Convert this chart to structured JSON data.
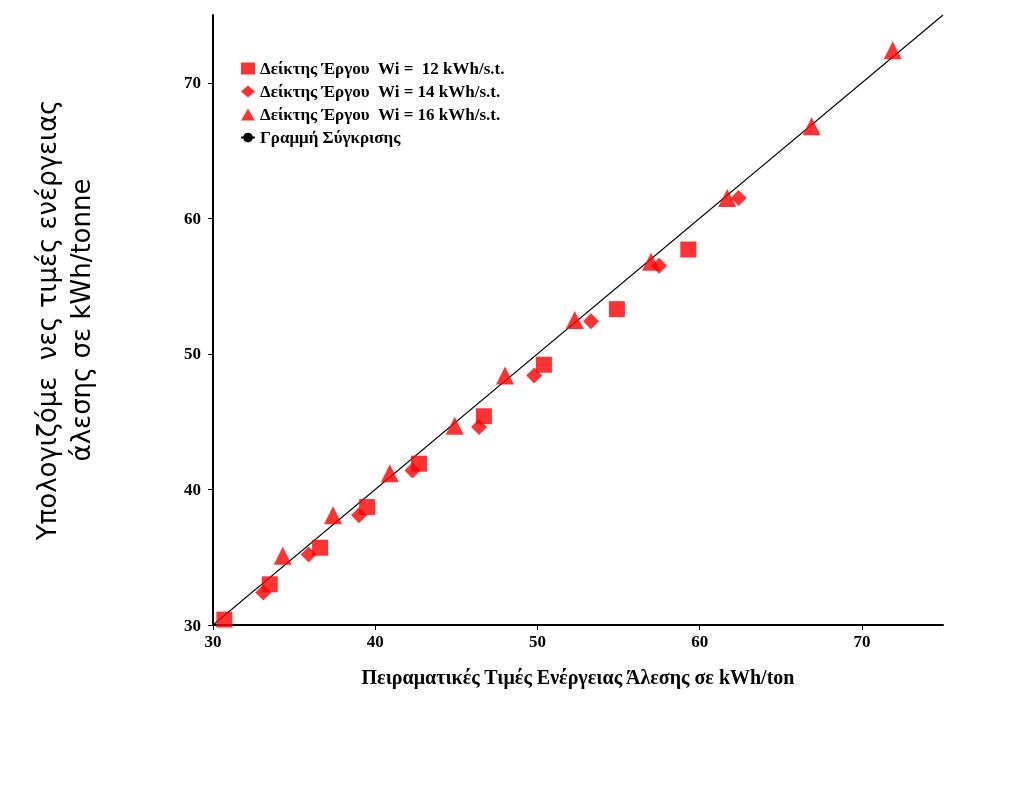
{
  "chart_data": {
    "type": "scatter",
    "xlabel": "Πειραματικές Τιμές Ενέργειας Άλεσης σε kWh/ton",
    "ylabel": "Υπολογιζόμε  νες τιμές ενέργειας\nάλεσης σε kWh/tonne",
    "xlim": [
      30,
      75
    ],
    "xticks": [
      30,
      40,
      50,
      60,
      70
    ],
    "ylim": [
      30,
      75
    ],
    "yticks": [
      30,
      40,
      50,
      60,
      70
    ],
    "grid": false,
    "legend": "top left",
    "series": [
      {
        "name": "Δείκτης Έργου  Wi =  12 kWh/s.t.",
        "color": "#ff0000",
        "marker": "square",
        "x": [
          30.7,
          33.5,
          36.6,
          39.5,
          42.7,
          46.7,
          50.4,
          54.9,
          59.3
        ],
        "values": [
          30.4,
          33.0,
          35.7,
          38.7,
          41.9,
          45.4,
          49.2,
          53.3,
          57.7
        ]
      },
      {
        "name": "Δείκτης Έργου  Wi = 14 kWh/s.t.",
        "color": "#ff0000",
        "marker": "diamond",
        "x": [
          33.1,
          35.9,
          39.0,
          42.3,
          46.4,
          49.8,
          53.3,
          57.5,
          62.4
        ],
        "values": [
          32.4,
          35.2,
          38.1,
          41.4,
          44.6,
          48.4,
          52.4,
          56.5,
          61.5
        ]
      },
      {
        "name": "Δείκτης Έργου  Wi = 16 kWh/s.t.",
        "color": "#ff0000",
        "marker": "triangle",
        "x": [
          34.3,
          37.4,
          40.9,
          44.9,
          48.0,
          52.3,
          57.0,
          61.7,
          66.9,
          71.9
        ],
        "values": [
          35.1,
          38.1,
          41.2,
          44.7,
          48.4,
          52.5,
          56.8,
          61.5,
          66.8,
          72.4
        ]
      },
      {
        "name": "Γραμμή Σύγκρισης",
        "type": "line",
        "color": "#000000",
        "marker": "none",
        "line_style": "solid",
        "x": [
          30,
          75
        ],
        "values": [
          30,
          75
        ]
      }
    ]
  }
}
